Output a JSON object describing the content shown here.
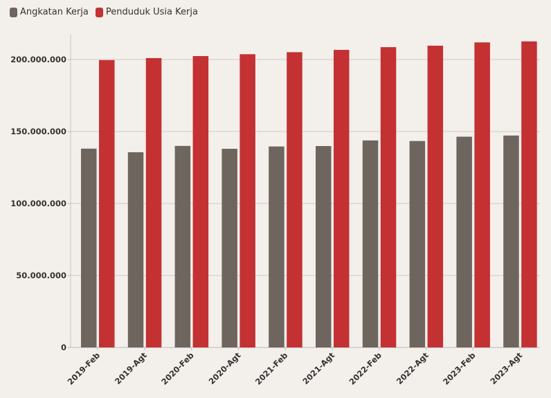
{
  "chart_data": {
    "type": "bar",
    "title": "",
    "xlabel": "",
    "ylabel": "",
    "categories": [
      "2019-Feb",
      "2019-Agt",
      "2020-Feb",
      "2020-Agt",
      "2021-Feb",
      "2021-Agt",
      "2022-Feb",
      "2022-Agt",
      "2023-Feb",
      "2023-Agt"
    ],
    "series": [
      {
        "name": "Angkatan Kerja",
        "color": "#6e655e",
        "values": [
          138100000,
          135600000,
          140000000,
          138000000,
          139600000,
          139900000,
          143800000,
          143400000,
          146400000,
          147200000
        ]
      },
      {
        "name": "Penduduk Usia Kerja",
        "color": "#c33133",
        "values": [
          199600000,
          201000000,
          202400000,
          203700000,
          205100000,
          206700000,
          208600000,
          209600000,
          211900000,
          212600000
        ]
      }
    ],
    "ylim": [
      0,
      210000000
    ],
    "yticks": [
      0,
      50000000,
      100000000,
      150000000,
      200000000
    ],
    "ytick_labels": [
      "0",
      "50.000.000",
      "100.000.000",
      "150.000.000",
      "200.000.000"
    ],
    "grid": true,
    "legend_position": "top-left"
  }
}
